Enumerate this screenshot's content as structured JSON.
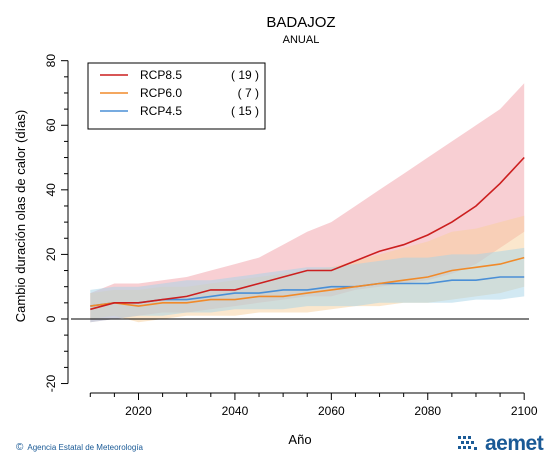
{
  "chart_data": {
    "type": "line",
    "title": "BADAJOZ",
    "subtitle": "ANUAL",
    "xlabel": "Año",
    "ylabel": "Cambio duración olas de calor (días)",
    "xlim": [
      2006,
      2101
    ],
    "ylim": [
      -22,
      83
    ],
    "xticks": [
      2020,
      2040,
      2060,
      2080,
      2100
    ],
    "yticks": [
      -20,
      0,
      20,
      40,
      60,
      80
    ],
    "zero_line": true,
    "grid": false,
    "legend_position": "top-left",
    "series": [
      {
        "name": "RCP8.5",
        "count": "( 19 )",
        "color": "#cc1f1f",
        "band_color": "#f2a0a8",
        "x": [
          2010,
          2015,
          2020,
          2025,
          2030,
          2035,
          2040,
          2045,
          2050,
          2055,
          2060,
          2065,
          2070,
          2075,
          2080,
          2085,
          2090,
          2095,
          2100
        ],
        "mid": [
          3,
          5,
          5,
          6,
          7,
          9,
          9,
          11,
          13,
          15,
          15,
          18,
          21,
          23,
          26,
          30,
          35,
          42,
          50
        ],
        "low": [
          -1,
          0,
          1,
          2,
          2,
          3,
          4,
          5,
          6,
          7,
          7,
          9,
          10,
          11,
          12,
          14,
          17,
          22,
          27
        ],
        "high": [
          8,
          11,
          11,
          12,
          13,
          15,
          17,
          19,
          23,
          27,
          30,
          35,
          40,
          45,
          50,
          55,
          60,
          65,
          73
        ]
      },
      {
        "name": "RCP6.0",
        "count": "( 7 )",
        "color": "#f08a2a",
        "band_color": "#f8cf9c",
        "x": [
          2010,
          2015,
          2020,
          2025,
          2030,
          2035,
          2040,
          2045,
          2050,
          2055,
          2060,
          2065,
          2070,
          2075,
          2080,
          2085,
          2090,
          2095,
          2100
        ],
        "mid": [
          4,
          5,
          4,
          5,
          5,
          6,
          6,
          7,
          7,
          8,
          9,
          10,
          11,
          12,
          13,
          15,
          16,
          17,
          19
        ],
        "low": [
          0,
          1,
          -1,
          0,
          1,
          1,
          1,
          2,
          2,
          2,
          3,
          4,
          4,
          5,
          5,
          6,
          7,
          8,
          10
        ],
        "high": [
          8,
          9,
          9,
          10,
          10,
          11,
          12,
          13,
          14,
          15,
          16,
          18,
          20,
          22,
          24,
          27,
          28,
          30,
          32
        ]
      },
      {
        "name": "RCP4.5",
        "count": "( 15 )",
        "color": "#4a8fd6",
        "band_color": "#a6d4e8",
        "x": [
          2010,
          2015,
          2020,
          2025,
          2030,
          2035,
          2040,
          2045,
          2050,
          2055,
          2060,
          2065,
          2070,
          2075,
          2080,
          2085,
          2090,
          2095,
          2100
        ],
        "mid": [
          4,
          5,
          5,
          6,
          6,
          7,
          8,
          8,
          9,
          9,
          10,
          10,
          11,
          11,
          11,
          12,
          12,
          13,
          13
        ],
        "low": [
          -1,
          0,
          1,
          1,
          2,
          2,
          3,
          3,
          3,
          4,
          4,
          4,
          5,
          5,
          5,
          5,
          6,
          6,
          7
        ],
        "high": [
          9,
          10,
          10,
          11,
          12,
          12,
          13,
          14,
          15,
          16,
          16,
          17,
          18,
          19,
          19,
          20,
          20,
          21,
          22
        ]
      }
    ]
  },
  "footer": {
    "credit_symbol": "©",
    "credit": "Agencia Estatal de Meteorología",
    "logo_text": "aemet"
  }
}
